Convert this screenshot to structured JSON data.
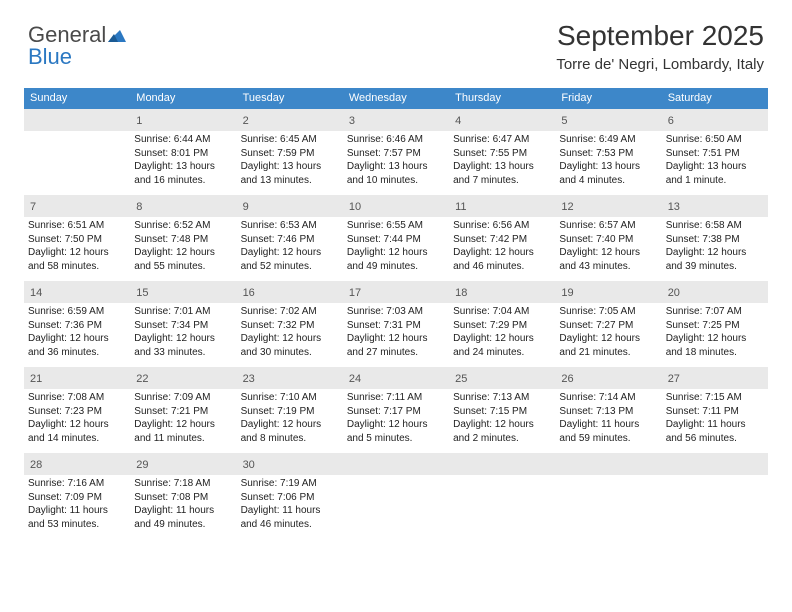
{
  "logo": {
    "part1": "General",
    "part2": "Blue"
  },
  "header": {
    "month_title": "September 2025",
    "location": "Torre de' Negri, Lombardy, Italy"
  },
  "style": {
    "header_bg": "#3d87c9",
    "header_text_color": "#ffffff",
    "daynum_bg": "#e9e9e9",
    "border_color": "#7a8a99",
    "title_fontsize": 28,
    "location_fontsize": 15,
    "dow_fontsize": 11,
    "body_fontsize": 10
  },
  "days_of_week": [
    "Sunday",
    "Monday",
    "Tuesday",
    "Wednesday",
    "Thursday",
    "Friday",
    "Saturday"
  ],
  "weeks": [
    [
      {
        "n": "",
        "sr": "",
        "ss": "",
        "dl": ""
      },
      {
        "n": "1",
        "sr": "Sunrise: 6:44 AM",
        "ss": "Sunset: 8:01 PM",
        "dl": "Daylight: 13 hours and 16 minutes."
      },
      {
        "n": "2",
        "sr": "Sunrise: 6:45 AM",
        "ss": "Sunset: 7:59 PM",
        "dl": "Daylight: 13 hours and 13 minutes."
      },
      {
        "n": "3",
        "sr": "Sunrise: 6:46 AM",
        "ss": "Sunset: 7:57 PM",
        "dl": "Daylight: 13 hours and 10 minutes."
      },
      {
        "n": "4",
        "sr": "Sunrise: 6:47 AM",
        "ss": "Sunset: 7:55 PM",
        "dl": "Daylight: 13 hours and 7 minutes."
      },
      {
        "n": "5",
        "sr": "Sunrise: 6:49 AM",
        "ss": "Sunset: 7:53 PM",
        "dl": "Daylight: 13 hours and 4 minutes."
      },
      {
        "n": "6",
        "sr": "Sunrise: 6:50 AM",
        "ss": "Sunset: 7:51 PM",
        "dl": "Daylight: 13 hours and 1 minute."
      }
    ],
    [
      {
        "n": "7",
        "sr": "Sunrise: 6:51 AM",
        "ss": "Sunset: 7:50 PM",
        "dl": "Daylight: 12 hours and 58 minutes."
      },
      {
        "n": "8",
        "sr": "Sunrise: 6:52 AM",
        "ss": "Sunset: 7:48 PM",
        "dl": "Daylight: 12 hours and 55 minutes."
      },
      {
        "n": "9",
        "sr": "Sunrise: 6:53 AM",
        "ss": "Sunset: 7:46 PM",
        "dl": "Daylight: 12 hours and 52 minutes."
      },
      {
        "n": "10",
        "sr": "Sunrise: 6:55 AM",
        "ss": "Sunset: 7:44 PM",
        "dl": "Daylight: 12 hours and 49 minutes."
      },
      {
        "n": "11",
        "sr": "Sunrise: 6:56 AM",
        "ss": "Sunset: 7:42 PM",
        "dl": "Daylight: 12 hours and 46 minutes."
      },
      {
        "n": "12",
        "sr": "Sunrise: 6:57 AM",
        "ss": "Sunset: 7:40 PM",
        "dl": "Daylight: 12 hours and 43 minutes."
      },
      {
        "n": "13",
        "sr": "Sunrise: 6:58 AM",
        "ss": "Sunset: 7:38 PM",
        "dl": "Daylight: 12 hours and 39 minutes."
      }
    ],
    [
      {
        "n": "14",
        "sr": "Sunrise: 6:59 AM",
        "ss": "Sunset: 7:36 PM",
        "dl": "Daylight: 12 hours and 36 minutes."
      },
      {
        "n": "15",
        "sr": "Sunrise: 7:01 AM",
        "ss": "Sunset: 7:34 PM",
        "dl": "Daylight: 12 hours and 33 minutes."
      },
      {
        "n": "16",
        "sr": "Sunrise: 7:02 AM",
        "ss": "Sunset: 7:32 PM",
        "dl": "Daylight: 12 hours and 30 minutes."
      },
      {
        "n": "17",
        "sr": "Sunrise: 7:03 AM",
        "ss": "Sunset: 7:31 PM",
        "dl": "Daylight: 12 hours and 27 minutes."
      },
      {
        "n": "18",
        "sr": "Sunrise: 7:04 AM",
        "ss": "Sunset: 7:29 PM",
        "dl": "Daylight: 12 hours and 24 minutes."
      },
      {
        "n": "19",
        "sr": "Sunrise: 7:05 AM",
        "ss": "Sunset: 7:27 PM",
        "dl": "Daylight: 12 hours and 21 minutes."
      },
      {
        "n": "20",
        "sr": "Sunrise: 7:07 AM",
        "ss": "Sunset: 7:25 PM",
        "dl": "Daylight: 12 hours and 18 minutes."
      }
    ],
    [
      {
        "n": "21",
        "sr": "Sunrise: 7:08 AM",
        "ss": "Sunset: 7:23 PM",
        "dl": "Daylight: 12 hours and 14 minutes."
      },
      {
        "n": "22",
        "sr": "Sunrise: 7:09 AM",
        "ss": "Sunset: 7:21 PM",
        "dl": "Daylight: 12 hours and 11 minutes."
      },
      {
        "n": "23",
        "sr": "Sunrise: 7:10 AM",
        "ss": "Sunset: 7:19 PM",
        "dl": "Daylight: 12 hours and 8 minutes."
      },
      {
        "n": "24",
        "sr": "Sunrise: 7:11 AM",
        "ss": "Sunset: 7:17 PM",
        "dl": "Daylight: 12 hours and 5 minutes."
      },
      {
        "n": "25",
        "sr": "Sunrise: 7:13 AM",
        "ss": "Sunset: 7:15 PM",
        "dl": "Daylight: 12 hours and 2 minutes."
      },
      {
        "n": "26",
        "sr": "Sunrise: 7:14 AM",
        "ss": "Sunset: 7:13 PM",
        "dl": "Daylight: 11 hours and 59 minutes."
      },
      {
        "n": "27",
        "sr": "Sunrise: 7:15 AM",
        "ss": "Sunset: 7:11 PM",
        "dl": "Daylight: 11 hours and 56 minutes."
      }
    ],
    [
      {
        "n": "28",
        "sr": "Sunrise: 7:16 AM",
        "ss": "Sunset: 7:09 PM",
        "dl": "Daylight: 11 hours and 53 minutes."
      },
      {
        "n": "29",
        "sr": "Sunrise: 7:18 AM",
        "ss": "Sunset: 7:08 PM",
        "dl": "Daylight: 11 hours and 49 minutes."
      },
      {
        "n": "30",
        "sr": "Sunrise: 7:19 AM",
        "ss": "Sunset: 7:06 PM",
        "dl": "Daylight: 11 hours and 46 minutes."
      },
      {
        "n": "",
        "sr": "",
        "ss": "",
        "dl": ""
      },
      {
        "n": "",
        "sr": "",
        "ss": "",
        "dl": ""
      },
      {
        "n": "",
        "sr": "",
        "ss": "",
        "dl": ""
      },
      {
        "n": "",
        "sr": "",
        "ss": "",
        "dl": ""
      }
    ]
  ]
}
